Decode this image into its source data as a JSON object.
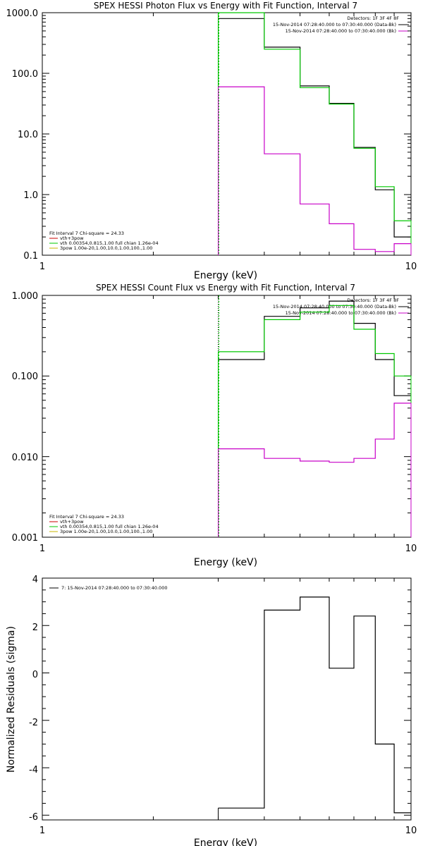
{
  "chart_data": [
    {
      "type": "line",
      "title": "SPEX HESSI Photon Flux vs Energy with Fit Function, Interval 7",
      "xlabel": "Energy (keV)",
      "ylabel": "",
      "xscale": "log",
      "yscale": "log",
      "xlim": [
        1,
        10
      ],
      "ylim": [
        0.1,
        1000
      ],
      "xticks": [
        "1",
        "10"
      ],
      "yticks": [
        "0.1",
        "1.0",
        "10.0",
        "100.0",
        "1000.0"
      ],
      "marker_x": 3,
      "legend_tr": [
        "Detectors: 1F 3F 4F 8F",
        "15-Nov-2014 07:28:40.000 to 07:30:40.000 (Data-Bk)",
        "15-Nov-2014 07:28:40.000 to 07:30:40.000 (Bk)"
      ],
      "legend_bl": [
        "Fit Interval 7   Chi-square = 24.33",
        "vth+3pow",
        "vth 0.00354,0.815,1.00  full chian 1.26e-04",
        "3pow 1.00e-20,1.00,10.0,1.00,100.,1.00"
      ],
      "edges": [
        3,
        4,
        5,
        6,
        7,
        8,
        9,
        10
      ],
      "series": [
        {
          "color": "#000000",
          "values": [
            800,
            270,
            62,
            32,
            6.0,
            1.2,
            0.2
          ]
        },
        {
          "color": "#00c800",
          "values": [
            1000,
            250,
            58,
            31,
            5.8,
            1.35,
            0.37
          ]
        },
        {
          "color": "#c800c8",
          "values": [
            60,
            4.7,
            0.7,
            0.33,
            0.125,
            0.115,
            0.155
          ]
        }
      ]
    },
    {
      "type": "line",
      "title": "SPEX HESSI Count Flux vs Energy with Fit Function, Interval 7",
      "xlabel": "Energy (keV)",
      "ylabel": "",
      "xscale": "log",
      "yscale": "log",
      "xlim": [
        1,
        10
      ],
      "ylim": [
        0.001,
        1
      ],
      "xticks": [
        "1",
        "10"
      ],
      "yticks": [
        "0.001",
        "0.010",
        "0.100",
        "1.000"
      ],
      "marker_x": 3,
      "legend_tr": [
        "Detectors: 1F 3F 4F 8F",
        "15-Nov-2014 07:28:40.000 to 07:30:40.000 (Data-Bk)",
        "15-Nov-2014 07:28:40.000 to 07:30:40.000 (Bk)"
      ],
      "legend_bl": [
        "Fit Interval 7   Chi-square = 24.33",
        "vth+3pow",
        "vth 0.00354,0.815,1.00  full chian 1.26e-04",
        "3pow 1.00e-20,1.00,10.0,1.00,100.,1.00"
      ],
      "edges": [
        3,
        4,
        5,
        6,
        7,
        8,
        9,
        10
      ],
      "series": [
        {
          "color": "#000000",
          "values": [
            0.16,
            0.55,
            0.7,
            0.85,
            0.45,
            0.16,
            0.057
          ]
        },
        {
          "color": "#00c800",
          "values": [
            0.2,
            0.5,
            0.62,
            0.75,
            0.38,
            0.19,
            0.1
          ]
        },
        {
          "color": "#c800c8",
          "values": [
            0.0125,
            0.0095,
            0.0088,
            0.0085,
            0.0095,
            0.0165,
            0.046
          ]
        }
      ]
    },
    {
      "type": "line",
      "title": "",
      "xlabel": "Energy (keV)",
      "ylabel": "Normalized Residuals (sigma)",
      "xscale": "log",
      "yscale": "linear",
      "xlim": [
        1,
        10
      ],
      "ylim": [
        -6.2,
        4
      ],
      "xticks": [
        "1",
        "10"
      ],
      "yticks": [
        "-6",
        "-4",
        "-2",
        "0",
        "2",
        "4"
      ],
      "legend_tl": [
        "7: 15-Nov-2014 07:28:40.000 to 07:30:40.000"
      ],
      "edges": [
        3,
        4,
        5,
        6,
        7,
        8,
        9,
        10
      ],
      "series": [
        {
          "color": "#000000",
          "values": [
            -5.7,
            2.65,
            3.2,
            0.2,
            2.4,
            -3.0,
            -5.9
          ]
        }
      ]
    }
  ]
}
